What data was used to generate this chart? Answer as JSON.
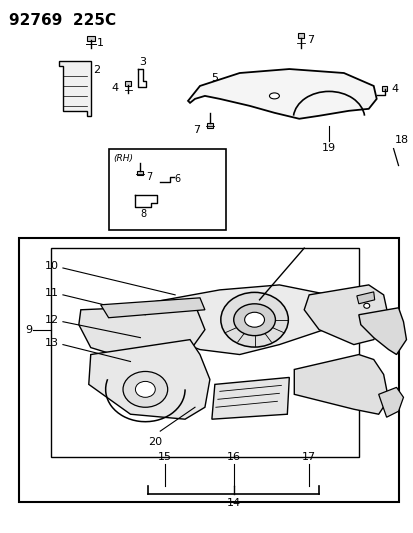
{
  "title": "92769  225C",
  "bg_color": "#ffffff",
  "line_color": "#000000",
  "text_color": "#000000",
  "title_fontsize": 11,
  "label_fontsize": 8,
  "fig_width": 4.14,
  "fig_height": 5.33,
  "dpi": 100
}
